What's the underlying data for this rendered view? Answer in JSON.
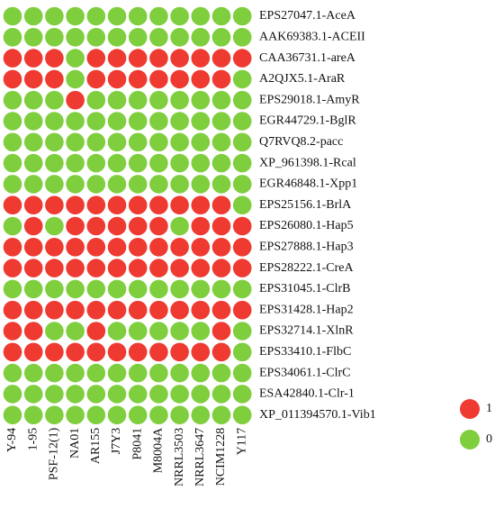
{
  "chart_data": {
    "type": "dot-matrix",
    "rows": [
      "EPS27047.1-AceA",
      "AAK69383.1-ACEII",
      "CAA36731.1-areA",
      "A2QJX5.1-AraR",
      "EPS29018.1-AmyR",
      "EGR44729.1-BglR",
      "Q7RVQ8.2-pacc",
      "XP_961398.1-Rcal",
      "EGR46848.1-Xpp1",
      "EPS25156.1-BrlA",
      "EPS26080.1-Hap5",
      "EPS27888.1-Hap3",
      "EPS28222.1-CreA",
      "EPS31045.1-ClrB",
      "EPS31428.1-Hap2",
      "EPS32714.1-XlnR",
      "EPS33410.1-FlbC",
      "EPS34061.1-ClrC",
      "ESA42840.1-Clr-1",
      "XP_011394570.1-Vib1"
    ],
    "columns": [
      "Y-94",
      "1-95",
      "PSF-12(1)",
      "NA01",
      "AR155",
      "J7Y3",
      "P8041",
      "M8004A",
      "NRRL3503",
      "NRRL3647",
      "NCIM1228",
      "Y117"
    ],
    "values": [
      [
        0,
        0,
        0,
        0,
        0,
        0,
        0,
        0,
        0,
        0,
        0,
        0
      ],
      [
        0,
        0,
        0,
        0,
        0,
        0,
        0,
        0,
        0,
        0,
        0,
        0
      ],
      [
        1,
        1,
        1,
        0,
        1,
        1,
        1,
        1,
        1,
        1,
        1,
        1
      ],
      [
        1,
        1,
        1,
        0,
        1,
        1,
        1,
        1,
        1,
        1,
        1,
        0
      ],
      [
        0,
        0,
        0,
        1,
        0,
        0,
        0,
        0,
        0,
        0,
        0,
        0
      ],
      [
        0,
        0,
        0,
        0,
        0,
        0,
        0,
        0,
        0,
        0,
        0,
        0
      ],
      [
        0,
        0,
        0,
        0,
        0,
        0,
        0,
        0,
        0,
        0,
        0,
        0
      ],
      [
        0,
        0,
        0,
        0,
        0,
        0,
        0,
        0,
        0,
        0,
        0,
        0
      ],
      [
        0,
        0,
        0,
        0,
        0,
        0,
        0,
        0,
        0,
        0,
        0,
        0
      ],
      [
        1,
        1,
        1,
        1,
        1,
        1,
        1,
        1,
        1,
        1,
        1,
        0
      ],
      [
        0,
        1,
        0,
        1,
        1,
        1,
        1,
        1,
        0,
        1,
        1,
        1
      ],
      [
        1,
        1,
        1,
        1,
        1,
        1,
        1,
        1,
        1,
        1,
        1,
        1
      ],
      [
        1,
        1,
        1,
        1,
        1,
        1,
        1,
        1,
        1,
        1,
        1,
        1
      ],
      [
        0,
        0,
        0,
        0,
        0,
        0,
        0,
        0,
        0,
        0,
        0,
        0
      ],
      [
        1,
        1,
        1,
        1,
        1,
        1,
        1,
        1,
        1,
        1,
        1,
        1
      ],
      [
        1,
        1,
        0,
        0,
        1,
        0,
        0,
        0,
        0,
        0,
        1,
        0
      ],
      [
        1,
        1,
        1,
        1,
        1,
        1,
        1,
        1,
        1,
        1,
        1,
        0
      ],
      [
        0,
        0,
        0,
        0,
        0,
        0,
        0,
        0,
        0,
        0,
        0,
        0
      ],
      [
        0,
        0,
        0,
        0,
        0,
        0,
        0,
        0,
        0,
        0,
        0,
        0
      ],
      [
        0,
        0,
        0,
        0,
        0,
        0,
        0,
        0,
        0,
        0,
        0,
        0
      ]
    ],
    "legend": [
      {
        "value": 1,
        "color": "#ee3a31"
      },
      {
        "value": 0,
        "color": "#7fce3e"
      }
    ]
  }
}
